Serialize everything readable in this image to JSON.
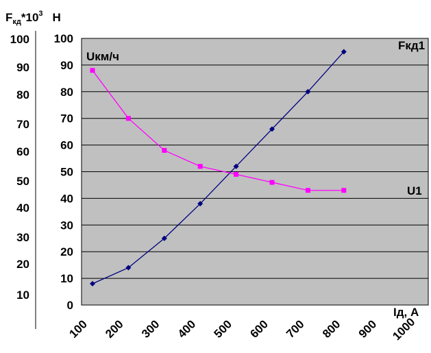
{
  "chart_data": {
    "type": "line",
    "y_left_label": {
      "base": "F",
      "subscript": "кд",
      "mid": "*10",
      "superscript": "3",
      "unit": "Н"
    },
    "y_left_ticks": [
      "100",
      "90",
      "80",
      "70",
      "60",
      "50",
      "40",
      "30",
      "20",
      "10"
    ],
    "y_inner_ticks": [
      "0",
      "10",
      "20",
      "30",
      "40",
      "50",
      "60",
      "70",
      "80",
      "90",
      "100"
    ],
    "x_ticks": [
      "100",
      "200",
      "300",
      "400",
      "500",
      "600",
      "700",
      "800",
      "900",
      "1000"
    ],
    "xlabel": "Iд,  А",
    "ylabel_inner": "Uкм/ч",
    "ylim": [
      0,
      100
    ],
    "series": [
      {
        "name": "Fкд1",
        "color": "#000080",
        "marker": "diamond",
        "x": [
          1,
          2,
          3,
          4,
          5,
          6,
          7,
          8
        ],
        "y": [
          8,
          14,
          25,
          38,
          52,
          66,
          80,
          95
        ]
      },
      {
        "name": "U1",
        "color": "#ff00ff",
        "marker": "square",
        "x": [
          1,
          2,
          3,
          4,
          5,
          6,
          7,
          8
        ],
        "y": [
          88,
          70,
          58,
          52,
          49,
          46,
          43,
          43
        ]
      }
    ],
    "plot_background": "#c0c0c0",
    "grid": true
  }
}
